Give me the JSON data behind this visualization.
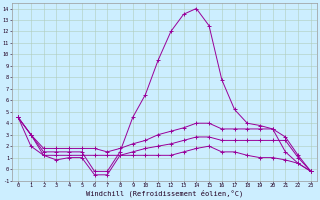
{
  "xlabel": "Windchill (Refroidissement éolien,°C)",
  "background_color": "#cceeff",
  "grid_color": "#b0ccbb",
  "line_color": "#990099",
  "x_ticks": [
    0,
    1,
    2,
    3,
    4,
    5,
    6,
    7,
    8,
    9,
    10,
    11,
    12,
    13,
    14,
    15,
    16,
    17,
    18,
    19,
    20,
    21,
    22,
    23
  ],
  "y_ticks": [
    -1,
    0,
    1,
    2,
    3,
    4,
    5,
    6,
    7,
    8,
    9,
    10,
    11,
    12,
    13,
    14
  ],
  "ylim": [
    -1,
    14.5
  ],
  "curves": [
    [
      4.5,
      3.0,
      1.5,
      1.5,
      1.5,
      1.5,
      -0.2,
      -0.2,
      1.5,
      4.5,
      6.5,
      9.5,
      12.0,
      13.5,
      14.0,
      12.5,
      7.8,
      5.2,
      4.0,
      3.8,
      3.5,
      1.5,
      0.5,
      -0.2
    ],
    [
      4.5,
      3.0,
      1.8,
      1.8,
      1.8,
      1.8,
      1.8,
      1.5,
      1.8,
      2.2,
      2.5,
      3.0,
      3.3,
      3.6,
      4.0,
      4.0,
      3.5,
      3.5,
      3.5,
      3.5,
      3.5,
      2.8,
      1.2,
      -0.2
    ],
    [
      4.5,
      3.0,
      1.2,
      1.2,
      1.2,
      1.2,
      1.2,
      1.2,
      1.2,
      1.5,
      1.8,
      2.0,
      2.2,
      2.5,
      2.8,
      2.8,
      2.5,
      2.5,
      2.5,
      2.5,
      2.5,
      2.5,
      1.0,
      -0.2
    ],
    [
      4.5,
      2.0,
      1.2,
      0.8,
      1.0,
      1.0,
      -0.5,
      -0.5,
      1.2,
      1.2,
      1.2,
      1.2,
      1.2,
      1.5,
      1.8,
      2.0,
      1.5,
      1.5,
      1.2,
      1.0,
      1.0,
      0.8,
      0.5,
      -0.2
    ]
  ]
}
